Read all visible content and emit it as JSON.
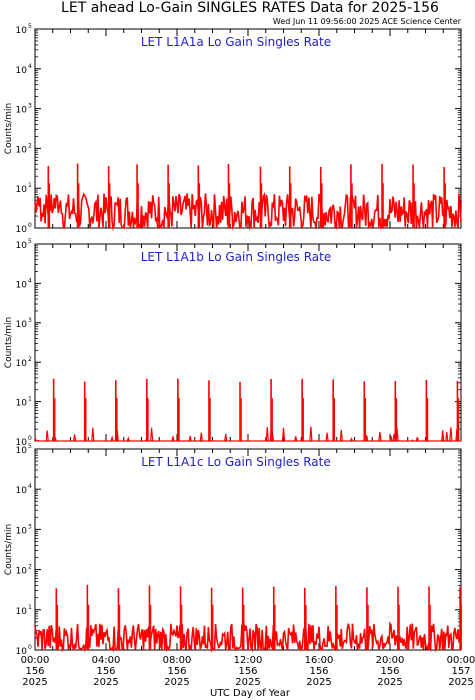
{
  "title": "LET ahead Lo-Gain SINGLES RATES Data for 2025-156",
  "timestamp": "Wed Jun 11 09:56:00 2025 ACE Science Center",
  "colors": {
    "series": "#ff0000",
    "panel_title": "#1f1fcc",
    "axes": "#000000"
  },
  "chart_data": [
    {
      "type": "line",
      "title": "LET L1A1a Lo Gain Singles Rate",
      "ylabel": "Counts/min",
      "yscale": "log",
      "ylim": [
        1,
        100000
      ],
      "xlim": [
        0,
        24
      ],
      "y_tick_mantissa": [
        "10",
        "10",
        "10",
        "10",
        "10",
        "10"
      ],
      "y_tick_exponent": [
        "0",
        "1",
        "2",
        "3",
        "4",
        "5"
      ],
      "baseline_level": 2.5,
      "spike_peak": 38,
      "spike_hours": [
        0.75,
        2.4,
        4.15,
        5.75,
        7.5,
        9.2,
        10.9,
        12.7,
        14.35,
        16.1,
        17.8,
        19.55,
        21.3,
        23.05
      ]
    },
    {
      "type": "line",
      "title": "LET L1A1b Lo Gain Singles Rate",
      "ylabel": "Counts/min",
      "yscale": "log",
      "ylim": [
        1,
        100000
      ],
      "xlim": [
        0,
        24
      ],
      "y_tick_mantissa": [
        "10",
        "10",
        "10",
        "10",
        "10",
        "10"
      ],
      "y_tick_exponent": [
        "0",
        "1",
        "2",
        "3",
        "4",
        "5"
      ],
      "baseline_level": 1.0,
      "spike_peak": 35,
      "spike_hours": [
        1.05,
        2.8,
        4.55,
        6.3,
        8.05,
        9.8,
        11.55,
        13.3,
        15.05,
        16.8,
        18.55,
        20.3,
        22.05,
        23.8
      ]
    },
    {
      "type": "line",
      "title": "LET L1A1c Lo Gain Singles Rate",
      "ylabel": "Counts/min",
      "yscale": "log",
      "ylim": [
        1,
        100000
      ],
      "xlim": [
        0,
        24
      ],
      "y_tick_mantissa": [
        "10",
        "10",
        "10",
        "10",
        "10",
        "10"
      ],
      "y_tick_exponent": [
        "0",
        "1",
        "2",
        "3",
        "4",
        "5"
      ],
      "baseline_level": 1.8,
      "spike_peak": 38,
      "spike_hours": [
        1.2,
        2.95,
        4.7,
        6.45,
        8.2,
        9.95,
        11.7,
        13.45,
        15.2,
        16.95,
        18.7,
        20.45,
        22.2,
        23.95
      ]
    }
  ],
  "x_axis": {
    "label": "UTC Day of Year",
    "ticks": [
      {
        "hour": 0,
        "time": "00:00",
        "doy": "156",
        "year": "2025"
      },
      {
        "hour": 4,
        "time": "04:00",
        "doy": "156",
        "year": "2025"
      },
      {
        "hour": 8,
        "time": "08:00",
        "doy": "156",
        "year": "2025"
      },
      {
        "hour": 12,
        "time": "12:00",
        "doy": "156",
        "year": "2025"
      },
      {
        "hour": 16,
        "time": "16:00",
        "doy": "156",
        "year": "2025"
      },
      {
        "hour": 20,
        "time": "20:00",
        "doy": "156",
        "year": "2025"
      },
      {
        "hour": 24,
        "time": "00:00",
        "doy": "157",
        "year": "2025"
      }
    ]
  }
}
